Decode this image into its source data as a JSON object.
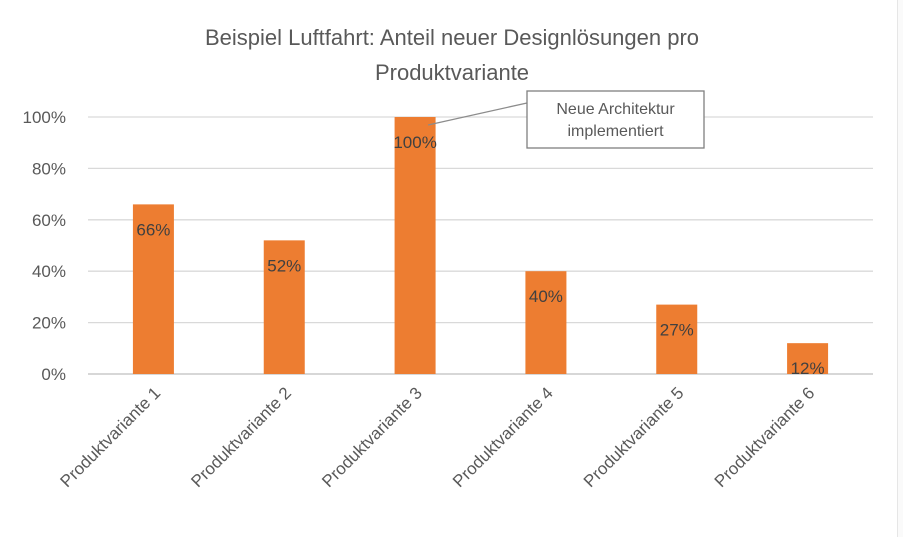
{
  "chart_data": {
    "type": "bar",
    "title_line1": "Beispiel Luftfahrt: Anteil neuer Designlösungen pro",
    "title_line2": "Produktvariante",
    "xlabel": "",
    "ylabel": "",
    "categories": [
      "Produktvariante 1",
      "Produktvariante 2",
      "Produktvariante 3",
      "Produktvariante 4",
      "Produktvariante 5",
      "Produktvariante 6"
    ],
    "values": [
      0.66,
      0.52,
      1.0,
      0.4,
      0.27,
      0.12
    ],
    "data_labels": [
      "66%",
      "52%",
      "100%",
      "40%",
      "27%",
      "12%"
    ],
    "ylim": [
      0,
      1.0
    ],
    "yticks": [
      0,
      0.2,
      0.4,
      0.6,
      0.8,
      1.0
    ],
    "ytick_labels": [
      "0%",
      "20%",
      "40%",
      "60%",
      "80%",
      "100%"
    ],
    "grid": true,
    "legend": "none",
    "bar_color": "#ED7D31",
    "callout": {
      "line1": "Neue Architektur",
      "line2": "implementiert",
      "target_category": "Produktvariante 3"
    }
  }
}
